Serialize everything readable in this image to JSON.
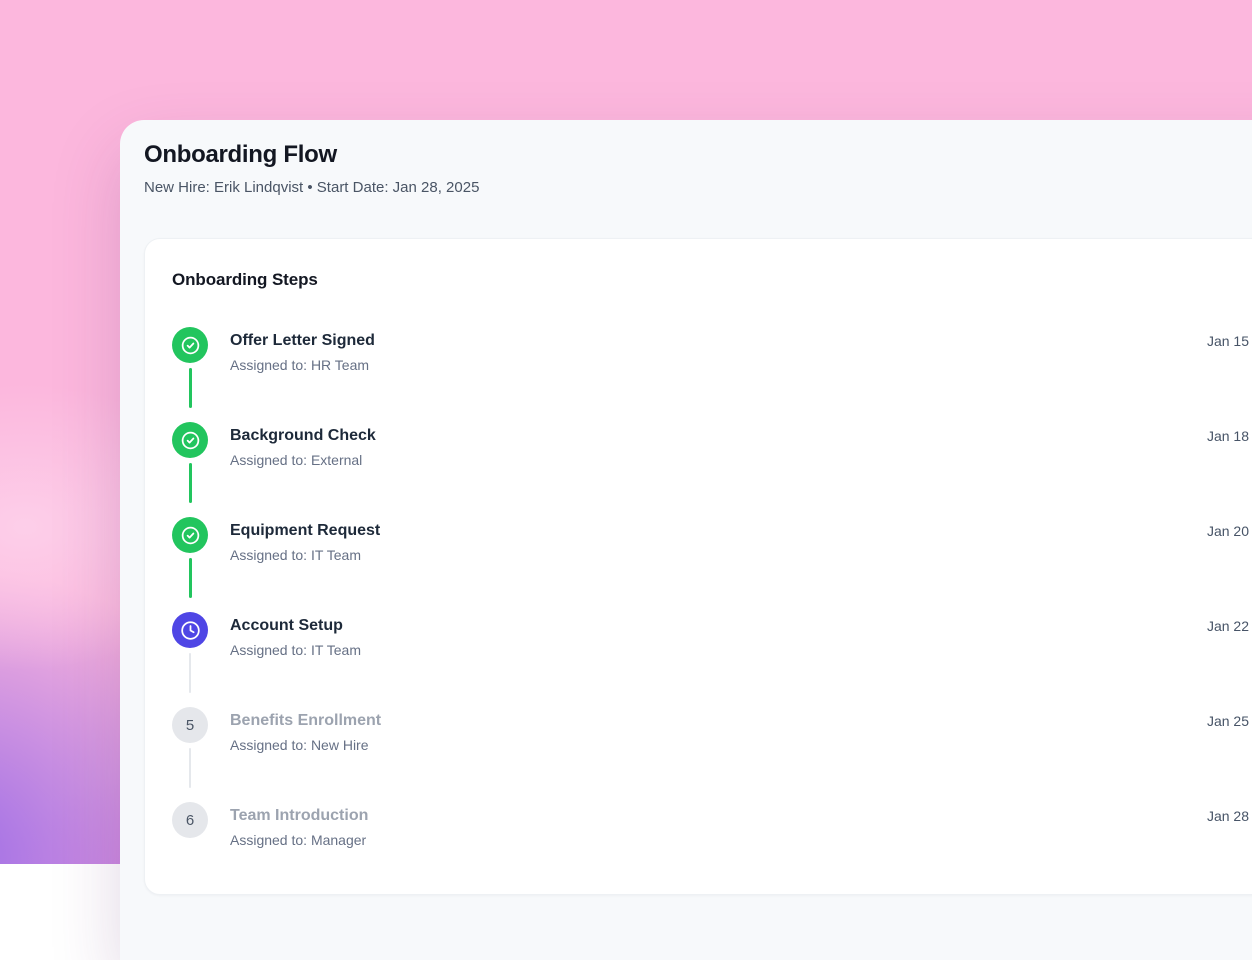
{
  "page": {
    "title": "Onboarding Flow",
    "subtitle": "New Hire: Erik Lindqvist • Start Date: Jan 28, 2025"
  },
  "card": {
    "heading": "Onboarding Steps",
    "steps": [
      {
        "title": "Offer Letter Signed",
        "assignee": "Assigned to: HR Team",
        "date": "Jan 15",
        "status": "completed",
        "icon": "check-circle-icon"
      },
      {
        "title": "Background Check",
        "assignee": "Assigned to: External",
        "date": "Jan 18",
        "status": "completed",
        "icon": "check-circle-icon"
      },
      {
        "title": "Equipment Request",
        "assignee": "Assigned to: IT Team",
        "date": "Jan 20",
        "status": "completed",
        "icon": "check-circle-icon"
      },
      {
        "title": "Account Setup",
        "assignee": "Assigned to: IT Team",
        "date": "Jan 22",
        "status": "current",
        "icon": "clock-icon"
      },
      {
        "title": "Benefits Enrollment",
        "assignee": "Assigned to: New Hire",
        "date": "Jan 25",
        "status": "pending",
        "number": "5"
      },
      {
        "title": "Team Introduction",
        "assignee": "Assigned to: Manager",
        "date": "Jan 28",
        "status": "pending",
        "number": "6"
      }
    ]
  },
  "colors": {
    "completed_green": "#22c55e",
    "current_indigo": "#4f46e5",
    "pending_gray": "#e5e7eb",
    "background_pink": "#fcb7dd",
    "background_purple": "#9a6ae6",
    "background_magenta": "#ef6fd4",
    "panel_bg": "#f7f9fb",
    "card_bg": "#ffffff"
  }
}
